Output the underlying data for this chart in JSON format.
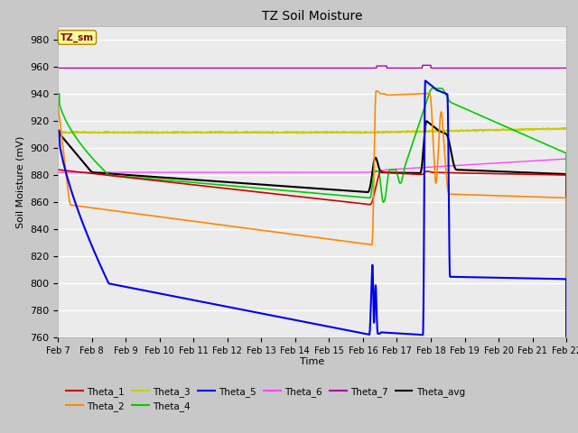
{
  "title": "TZ Soil Moisture",
  "xlabel": "Time",
  "ylabel": "Soil Moisture (mV)",
  "ylim": [
    760,
    990
  ],
  "yticks": [
    760,
    780,
    800,
    820,
    840,
    860,
    880,
    900,
    920,
    940,
    960,
    980
  ],
  "date_labels": [
    "Feb 7",
    "Feb 8",
    "Feb 9",
    "Feb 10",
    "Feb 11",
    "Feb 12",
    "Feb 13",
    "Feb 14",
    "Feb 15",
    "Feb 16",
    "Feb 17",
    "Feb 18",
    "Feb 19",
    "Feb 20",
    "Feb 21",
    "Feb 22"
  ],
  "colors": {
    "Theta_1": "#cc0000",
    "Theta_2": "#ff8800",
    "Theta_3": "#cccc00",
    "Theta_4": "#00cc00",
    "Theta_5": "#0000ee",
    "Theta_6": "#ff44ff",
    "Theta_7": "#aa00aa",
    "Theta_avg": "#000000"
  },
  "plot_bg": "#ebebeb",
  "fig_bg": "#c8c8c8",
  "grid_color": "#ffffff",
  "legend_box_facecolor": "#ffff99",
  "legend_box_edgecolor": "#aa8800",
  "legend_box_text": "TZ_sm",
  "legend_box_text_color": "#880000"
}
